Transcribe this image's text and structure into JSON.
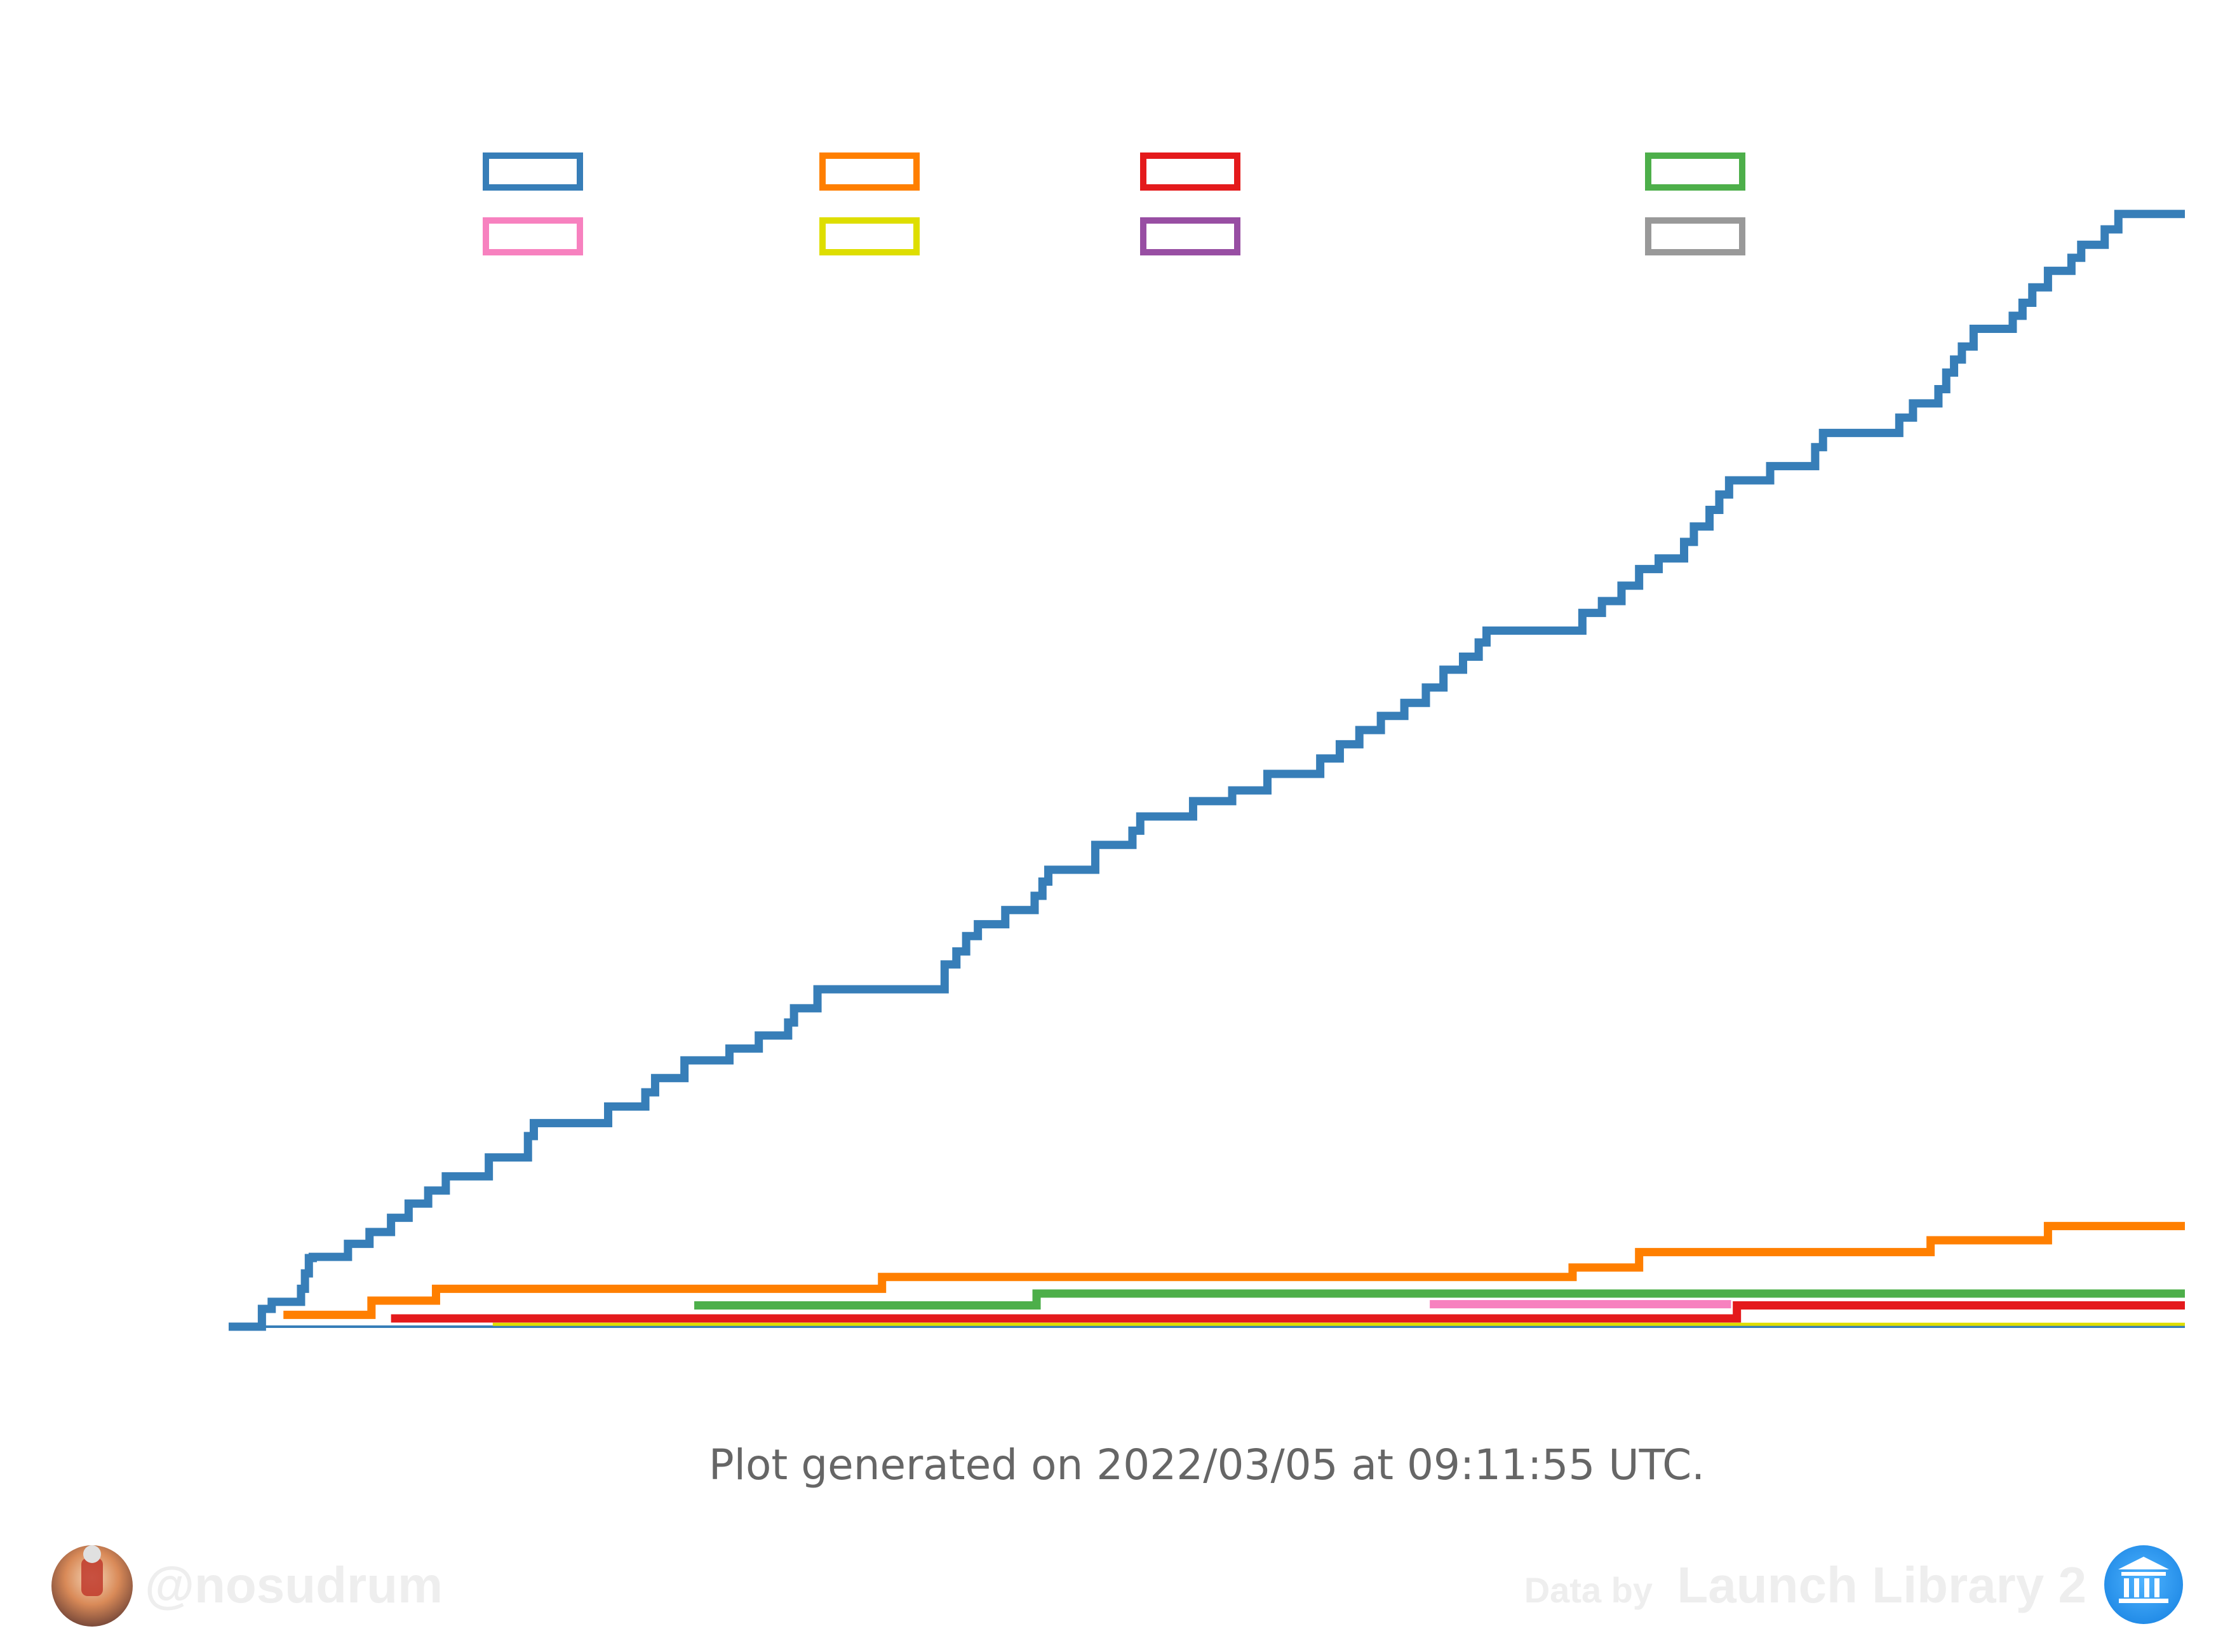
{
  "footer": {
    "generated_text": "Plot generated on 2022/03/05 at 09:11:55 UTC.",
    "author_handle": "@nosudrum",
    "data_by_label": "Data by",
    "data_source": "Launch Library 2"
  },
  "chart_data": {
    "type": "line",
    "step": true,
    "title": "",
    "xlabel": "",
    "ylabel": "",
    "xlim": [
      0,
      100
    ],
    "ylim": [
      0,
      100
    ],
    "grid": false,
    "legend": {
      "placement": "top",
      "columns": 4,
      "rows": 2
    },
    "series": [
      {
        "color": "#377eb8",
        "x": [
          0,
          1.7,
          2.2,
          3.7,
          3.9,
          4.1,
          4.3,
          6.1,
          7.2,
          8.3,
          9.2,
          10.2,
          11.1,
          13.3,
          15.3,
          15.6,
          19.4,
          21.3,
          21.8,
          23.3,
          25.6,
          27.1,
          28.6,
          28.9,
          30.1,
          36.6,
          37.2,
          37.7,
          38.3,
          39.7,
          41.2,
          41.6,
          41.9,
          44.3,
          46.2,
          46.6,
          49.3,
          51.3,
          53.1,
          55.8,
          56.8,
          57.8,
          58.9,
          60.1,
          61.2,
          62.1,
          63.1,
          63.9,
          64.3,
          69.2,
          70.2,
          71.2,
          72.1,
          73.1,
          74.4,
          74.9,
          75.7,
          76.2,
          76.7,
          78.8,
          81.1,
          81.5,
          85.4,
          86.1,
          87.4,
          87.8,
          88.2,
          88.6,
          89.2,
          91.2,
          91.7,
          92.2,
          93.0,
          94.2,
          94.7,
          95.9,
          96.6,
          100
        ],
        "y": [
          0,
          1.5,
          2.1,
          3.2,
          4.5,
          5.8,
          5.9,
          7.0,
          8.0,
          9.2,
          10.4,
          11.5,
          12.7,
          14.3,
          16.1,
          17.2,
          18.6,
          19.8,
          21.0,
          22.5,
          23.5,
          24.6,
          25.7,
          26.9,
          28.5,
          30.6,
          31.7,
          33.0,
          34.0,
          35.2,
          36.4,
          37.6,
          38.6,
          40.7,
          41.9,
          43.1,
          44.4,
          45.3,
          46.7,
          48.0,
          49.2,
          50.4,
          51.6,
          52.7,
          54.0,
          55.5,
          56.6,
          57.8,
          58.8,
          60.3,
          61.3,
          62.6,
          64.0,
          64.9,
          66.3,
          67.6,
          69.0,
          70.3,
          71.5,
          72.7,
          74.3,
          75.5,
          76.8,
          78.0,
          79.2,
          80.6,
          81.7,
          82.8,
          84.3,
          85.4,
          86.5,
          87.8,
          89.2,
          90.3,
          91.4,
          92.7,
          94.0,
          94.0
        ]
      },
      {
        "color": "#ff7f00",
        "x": [
          2.8,
          7.3,
          10.6,
          29.5,
          33.4,
          68.7,
          72.1,
          87.0,
          93.0,
          100
        ],
        "y": [
          1.0,
          2.2,
          3.2,
          3.2,
          4.2,
          5.0,
          6.3,
          7.3,
          8.5,
          8.5
        ]
      },
      {
        "color": "#e41a1c",
        "x": [
          8.3,
          77.1,
          100
        ],
        "y": [
          0.7,
          1.8,
          1.8
        ]
      },
      {
        "color": "#4daf4a",
        "x": [
          23.8,
          41.3,
          100
        ],
        "y": [
          1.8,
          2.8,
          2.8
        ]
      },
      {
        "color": "#f781bf",
        "x": [
          61.4,
          76.8
        ],
        "y": [
          1.9,
          1.9
        ]
      },
      {
        "color": "#dede00",
        "x": [
          13.5,
          100
        ],
        "y": [
          0.2,
          0.2
        ]
      },
      {
        "color": "#984ea3",
        "x": [],
        "y": []
      },
      {
        "color": "#999999",
        "x": [],
        "y": []
      }
    ]
  }
}
